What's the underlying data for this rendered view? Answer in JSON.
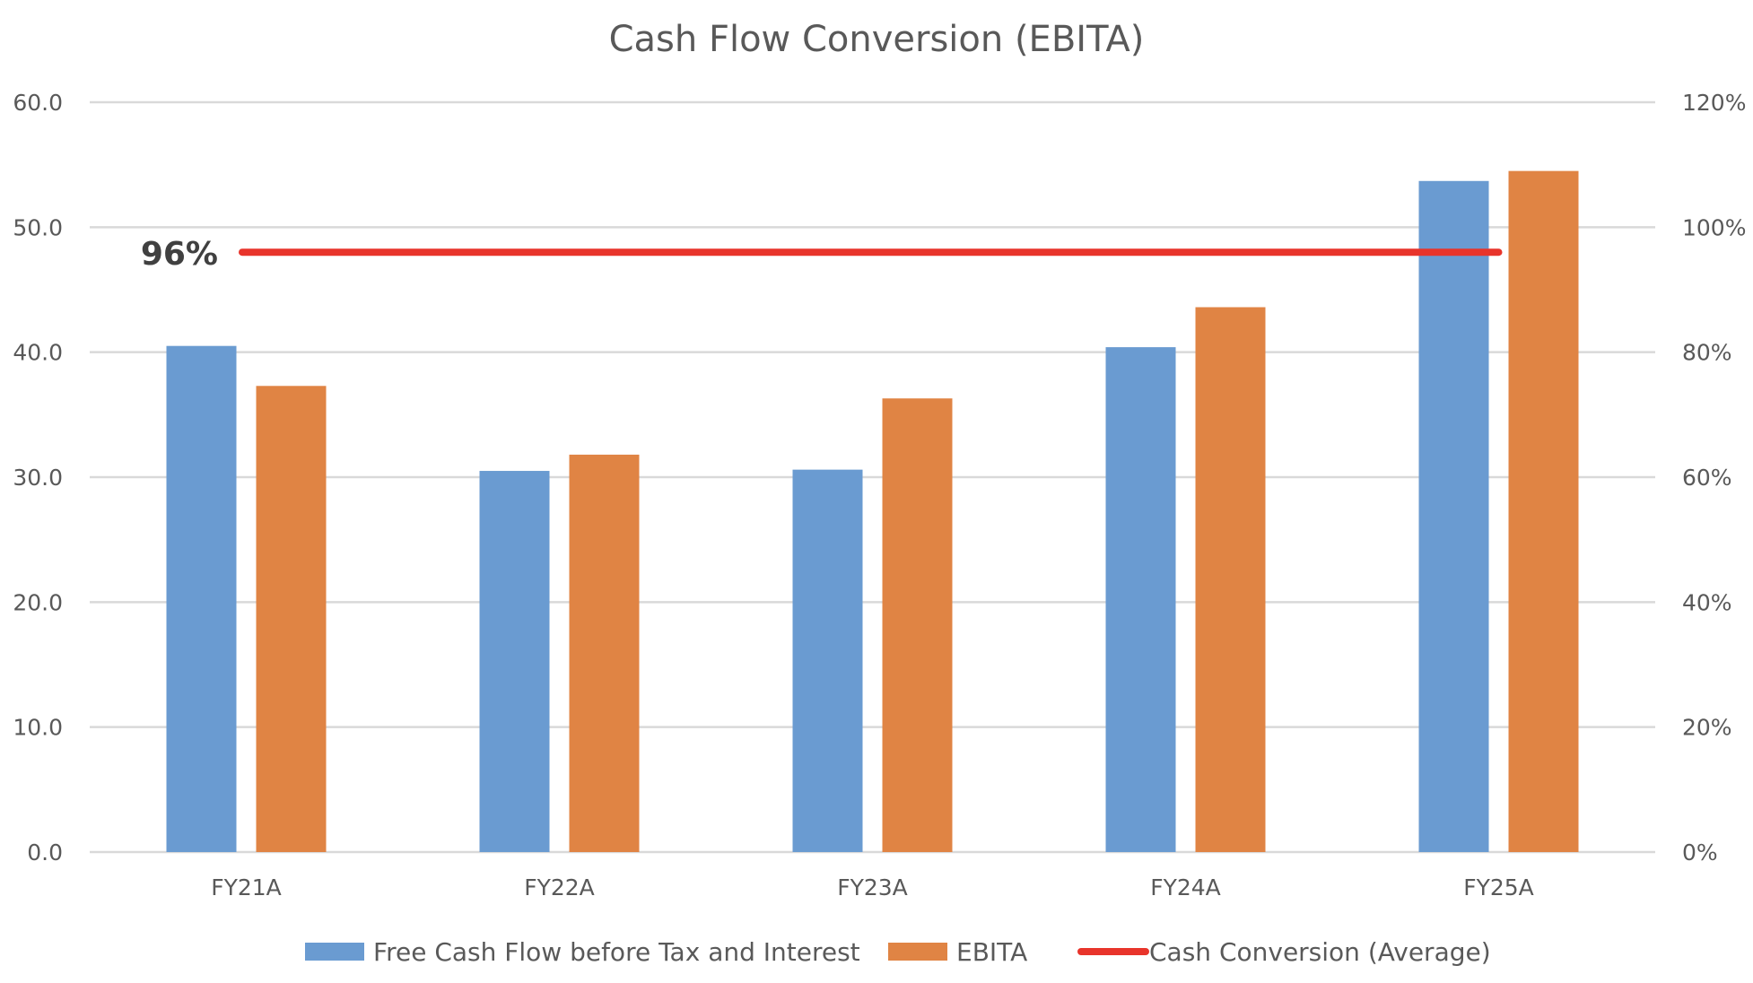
{
  "chart_data": {
    "type": "bar",
    "title": "Cash Flow Conversion (EBITA)",
    "categories": [
      "FY21A",
      "FY22A",
      "FY23A",
      "FY24A",
      "FY25A"
    ],
    "series": [
      {
        "name": "Free Cash Flow before Tax and Interest",
        "type": "bar",
        "color": "#6a9bd1",
        "axis": "left",
        "values": [
          40.5,
          30.5,
          30.6,
          40.4,
          53.7
        ]
      },
      {
        "name": "EBITA",
        "type": "bar",
        "color": "#e08444",
        "axis": "left",
        "values": [
          37.3,
          31.8,
          36.3,
          43.6,
          54.5
        ]
      },
      {
        "name": "Cash Conversion (Average)",
        "type": "line",
        "color": "#e8342b",
        "axis": "right",
        "values": [
          0.96,
          0.96,
          0.96,
          0.96,
          0.96
        ]
      }
    ],
    "y_left": {
      "ylim": [
        0,
        60
      ],
      "ticks": [
        0,
        10,
        20,
        30,
        40,
        50,
        60
      ],
      "tick_labels": [
        "0.0",
        "10.0",
        "20.0",
        "30.0",
        "40.0",
        "50.0",
        "60.0"
      ]
    },
    "y_right": {
      "ylim": [
        0,
        1.2
      ],
      "ticks": [
        0,
        0.2,
        0.4,
        0.6,
        0.8,
        1.0,
        1.2
      ],
      "tick_labels": [
        "0%",
        "20%",
        "40%",
        "60%",
        "80%",
        "100%",
        "120%"
      ]
    },
    "annotation": {
      "text": "96%"
    },
    "grid": true,
    "legend": "bottom-center",
    "xlabel": "",
    "ylabel": ""
  }
}
